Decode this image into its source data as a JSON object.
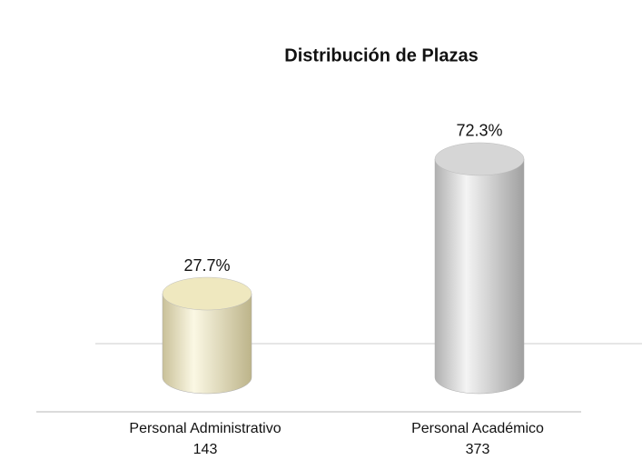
{
  "chart_data": {
    "type": "cylinder",
    "title": "Distribución de  Plazas",
    "categories": [
      "Personal Administrativo",
      "Personal Académico"
    ],
    "counts": [
      143,
      373
    ],
    "values": [
      27.7,
      72.3
    ],
    "value_labels": [
      "27.7%",
      "72.3%"
    ],
    "colors": [
      "#efe8bf",
      "#d6d6d6"
    ]
  }
}
